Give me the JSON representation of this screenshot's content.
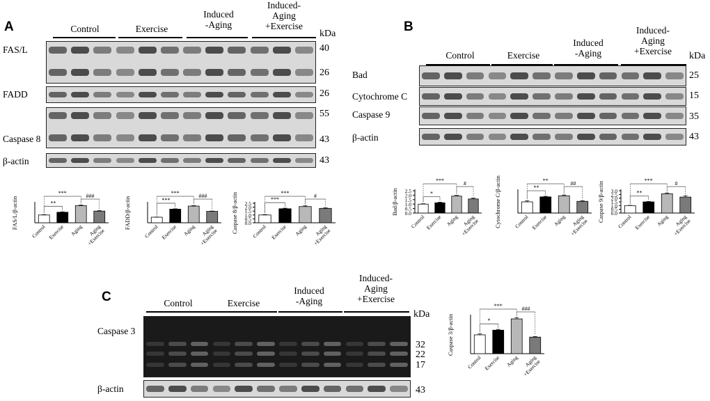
{
  "panels": {
    "A": {
      "letter": "A",
      "groups": [
        "Control",
        "Exercise",
        "Induced\n-Aging",
        "Induced-\nAging\n+Exercise"
      ],
      "kda": "kDa",
      "blots": [
        {
          "label": "FAS/L",
          "mw": [
            "40",
            "26"
          ]
        },
        {
          "label": "FADD",
          "mw": [
            "26"
          ]
        },
        {
          "label": "Caspase 8",
          "mw": [
            "55",
            "43"
          ]
        },
        {
          "label": "β-actin",
          "mw": [
            "43"
          ]
        }
      ]
    },
    "B": {
      "letter": "B",
      "groups": [
        "Control",
        "Exercise",
        "Induced\n-Aging",
        "Induced-\nAging\n+Exercise"
      ],
      "kda": "kDa",
      "blots": [
        {
          "label": "Bad",
          "mw": [
            "25"
          ]
        },
        {
          "label": "Cytochrome C",
          "mw": [
            "15"
          ]
        },
        {
          "label": "Caspase 9",
          "mw": [
            "35"
          ]
        },
        {
          "label": "β-actin",
          "mw": [
            "43"
          ]
        }
      ]
    },
    "C": {
      "letter": "C",
      "groups": [
        "Control",
        "Exercise",
        "Induced\n-Aging",
        "Induced-\nAging\n+Exercise"
      ],
      "kda": "kDa",
      "blots": [
        {
          "label": "Caspase 3",
          "mw": [
            "32",
            "22",
            "17"
          ]
        },
        {
          "label": "β-actin",
          "mw": [
            "43"
          ]
        }
      ]
    }
  },
  "colors": {
    "control": "#ffffff",
    "exercise": "#000000",
    "aging": "#b8b8b8",
    "aging_exercise": "#7a7a7a"
  },
  "chart_data": [
    {
      "type": "bar",
      "ylabel": "FAS/L/β-actin",
      "categories": [
        "Control",
        "Exercise",
        "Aging",
        "Aging\n+Exercise"
      ],
      "values": [
        1.0,
        1.35,
        2.2,
        1.5
      ],
      "errors": [
        0.04,
        0.05,
        0.08,
        0.06
      ],
      "ylim": [
        0,
        2.5
      ],
      "yticks": [],
      "sig": [
        {
          "from": 0,
          "to": 1,
          "label": "**"
        },
        {
          "from": 0,
          "to": 2,
          "label": "***"
        },
        {
          "from": 2,
          "to": 3,
          "label": "###"
        }
      ]
    },
    {
      "type": "bar",
      "ylabel": "FADD/β-actin",
      "categories": [
        "Control",
        "Exercise",
        "Aging",
        "Aging\n+Exercise"
      ],
      "values": [
        1.0,
        2.45,
        3.0,
        2.05
      ],
      "errors": [
        0.03,
        0.06,
        0.09,
        0.06
      ],
      "ylim": [
        0,
        3.5
      ],
      "yticks": [],
      "sig": [
        {
          "from": 0,
          "to": 1,
          "label": "***"
        },
        {
          "from": 0,
          "to": 2,
          "label": "***"
        },
        {
          "from": 2,
          "to": 3,
          "label": "###"
        }
      ]
    },
    {
      "type": "bar",
      "ylabel": "Caspase 8/β-actin",
      "categories": [
        "Control",
        "Exercise",
        "Aging",
        "Aging\n+Exercise"
      ],
      "values": [
        1.0,
        1.8,
        2.08,
        1.85
      ],
      "errors": [
        0.05,
        0.07,
        0.09,
        0.07
      ],
      "ylim": [
        0,
        2.5
      ],
      "yticks": [
        "0.0",
        "0.5",
        "1.0",
        "1.5",
        "2.0",
        "2.5"
      ],
      "sig": [
        {
          "from": 0,
          "to": 1,
          "label": "***"
        },
        {
          "from": 0,
          "to": 2,
          "label": "***"
        },
        {
          "from": 2,
          "to": 3,
          "label": "#"
        }
      ]
    },
    {
      "type": "bar",
      "ylabel": "Bad/β-actin",
      "categories": [
        "Control",
        "Exercise",
        "Aging",
        "Aging\n+Exercise"
      ],
      "values": [
        1.0,
        1.15,
        1.9,
        1.58
      ],
      "errors": [
        0.04,
        0.06,
        0.08,
        0.1
      ],
      "ylim": [
        0,
        2.5
      ],
      "yticks": [
        "0.0",
        "0.5",
        "1.0",
        "1.5",
        "2.0",
        "2.5"
      ],
      "sig": [
        {
          "from": 0,
          "to": 1,
          "label": "*"
        },
        {
          "from": 0,
          "to": 2,
          "label": "***"
        },
        {
          "from": 2,
          "to": 3,
          "label": "#"
        }
      ]
    },
    {
      "type": "bar",
      "ylabel": "Cytochrome C/β-actin",
      "categories": [
        "Control",
        "Exercise",
        "Aging",
        "Aging\n+Exercise"
      ],
      "values": [
        1.0,
        1.45,
        1.55,
        1.05
      ],
      "errors": [
        0.1,
        0.05,
        0.07,
        0.06
      ],
      "ylim": [
        0,
        2.0
      ],
      "yticks": [],
      "sig": [
        {
          "from": 0,
          "to": 1,
          "label": "**"
        },
        {
          "from": 0,
          "to": 2,
          "label": "**"
        },
        {
          "from": 2,
          "to": 3,
          "label": "##"
        }
      ]
    },
    {
      "type": "bar",
      "ylabel": "Caspase 9/β-actin",
      "categories": [
        "Control",
        "Exercise",
        "Aging",
        "Aging\n+Exercise"
      ],
      "values": [
        1.0,
        1.5,
        2.6,
        2.15
      ],
      "errors": [
        0.03,
        0.06,
        0.1,
        0.18
      ],
      "ylim": [
        0,
        3.0
      ],
      "yticks": [
        "0.0",
        "0.5",
        "1.0",
        "1.5",
        "2.0",
        "2.5",
        "3.0"
      ],
      "sig": [
        {
          "from": 0,
          "to": 1,
          "label": "**"
        },
        {
          "from": 0,
          "to": 2,
          "label": "***"
        },
        {
          "from": 2,
          "to": 3,
          "label": "#"
        }
      ]
    },
    {
      "type": "bar",
      "ylabel": "Caspase 3/β-actin",
      "categories": [
        "Control",
        "Exercise",
        "Aging",
        "Aging\n+Exercise"
      ],
      "values": [
        1.0,
        1.25,
        1.85,
        0.88
      ],
      "errors": [
        0.05,
        0.04,
        0.07,
        0.03
      ],
      "ylim": [
        0,
        2.0
      ],
      "yticks": [],
      "sig": [
        {
          "from": 0,
          "to": 1,
          "label": "*"
        },
        {
          "from": 0,
          "to": 2,
          "label": "***"
        },
        {
          "from": 2,
          "to": 3,
          "label": "###"
        }
      ]
    }
  ]
}
